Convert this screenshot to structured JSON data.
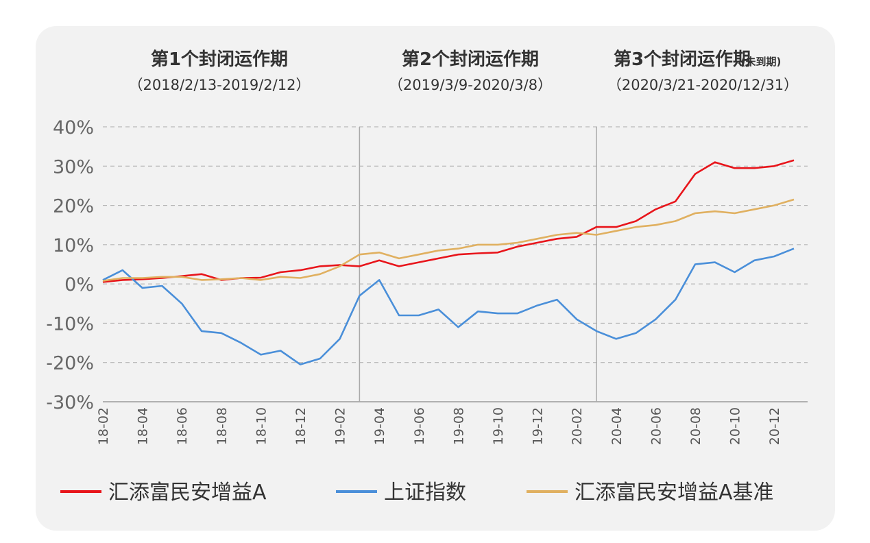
{
  "colors": {
    "fund": "#e8151b",
    "index": "#4a8fd9",
    "benchmark": "#e0b060",
    "grid": "#aaaaaa",
    "background": "#f2f2f2"
  },
  "periods": [
    {
      "title": "第1个封闭运作期",
      "note": "",
      "range": "（2018/2/13-2019/2/12）"
    },
    {
      "title": "第2个封闭运作期",
      "note": "",
      "range": "（2019/3/9-2020/3/8）"
    },
    {
      "title": "第3个封闭运作期",
      "note": "(未到期)",
      "range": "（2020/3/21-2020/12/31）"
    }
  ],
  "chart_data": {
    "type": "line",
    "title": "",
    "xlabel": "",
    "ylabel": "",
    "ylim": [
      -30,
      40
    ],
    "yticks": [
      40,
      30,
      20,
      10,
      0,
      -10,
      -20,
      -30
    ],
    "ytick_labels": [
      "40%",
      "30%",
      "20%",
      "10%",
      "0%",
      "-10%",
      "-20%",
      "-30%"
    ],
    "xtick_labels": [
      "18-02",
      "18-04",
      "18-06",
      "18-08",
      "18-10",
      "18-12",
      "19-02",
      "19-04",
      "19-06",
      "19-08",
      "19-10",
      "19-12",
      "20-02",
      "20-04",
      "20-06",
      "20-08",
      "20-10",
      "20-12"
    ],
    "period_dividers": [
      "2019-03",
      "2020-03"
    ],
    "grid": true,
    "legend_position": "bottom",
    "series": [
      {
        "name": "汇添富民安增益A",
        "color": "#e8151b",
        "points": [
          [
            "18-02",
            0.5
          ],
          [
            "18-03",
            1.0
          ],
          [
            "18-04",
            1.2
          ],
          [
            "18-05",
            1.5
          ],
          [
            "18-06",
            2.0
          ],
          [
            "18-07",
            2.5
          ],
          [
            "18-08",
            1.0
          ],
          [
            "18-09",
            1.5
          ],
          [
            "18-10",
            1.6
          ],
          [
            "18-11",
            3.0
          ],
          [
            "18-12",
            3.5
          ],
          [
            "19-01",
            4.5
          ],
          [
            "19-02",
            4.8
          ],
          [
            "19-03",
            4.5
          ],
          [
            "19-04",
            6.0
          ],
          [
            "19-05",
            4.5
          ],
          [
            "19-06",
            5.5
          ],
          [
            "19-07",
            6.5
          ],
          [
            "19-08",
            7.5
          ],
          [
            "19-09",
            7.8
          ],
          [
            "19-10",
            8.0
          ],
          [
            "19-11",
            9.5
          ],
          [
            "19-12",
            10.5
          ],
          [
            "20-01",
            11.5
          ],
          [
            "20-02",
            12.0
          ],
          [
            "20-03",
            14.5
          ],
          [
            "20-04",
            14.5
          ],
          [
            "20-05",
            16.0
          ],
          [
            "20-06",
            19.0
          ],
          [
            "20-07",
            21.0
          ],
          [
            "20-08",
            28.0
          ],
          [
            "20-09",
            31.0
          ],
          [
            "20-10",
            29.5
          ],
          [
            "20-11",
            29.5
          ],
          [
            "20-12",
            30.0
          ],
          [
            "21-01",
            31.5
          ]
        ]
      },
      {
        "name": "上证指数",
        "color": "#4a8fd9",
        "points": [
          [
            "18-02",
            1.0
          ],
          [
            "18-03",
            3.5
          ],
          [
            "18-04",
            -1.0
          ],
          [
            "18-05",
            -0.5
          ],
          [
            "18-06",
            -5.0
          ],
          [
            "18-07",
            -12.0
          ],
          [
            "18-08",
            -12.5
          ],
          [
            "18-09",
            -15.0
          ],
          [
            "18-10",
            -18.0
          ],
          [
            "18-11",
            -17.0
          ],
          [
            "18-12",
            -20.5
          ],
          [
            "19-01",
            -19.0
          ],
          [
            "19-02",
            -14.0
          ],
          [
            "19-03",
            -3.0
          ],
          [
            "19-04",
            1.0
          ],
          [
            "19-05",
            -8.0
          ],
          [
            "19-06",
            -8.0
          ],
          [
            "19-07",
            -6.5
          ],
          [
            "19-08",
            -11.0
          ],
          [
            "19-09",
            -7.0
          ],
          [
            "19-10",
            -7.5
          ],
          [
            "19-11",
            -7.5
          ],
          [
            "19-12",
            -5.5
          ],
          [
            "20-01",
            -4.0
          ],
          [
            "20-02",
            -9.0
          ],
          [
            "20-03",
            -12.0
          ],
          [
            "20-04",
            -14.0
          ],
          [
            "20-05",
            -12.5
          ],
          [
            "20-06",
            -9.0
          ],
          [
            "20-07",
            -4.0
          ],
          [
            "20-08",
            5.0
          ],
          [
            "20-09",
            5.5
          ],
          [
            "20-10",
            3.0
          ],
          [
            "20-11",
            6.0
          ],
          [
            "20-12",
            7.0
          ],
          [
            "21-01",
            9.0
          ]
        ]
      },
      {
        "name": "汇添富民安增益A基准",
        "color": "#e0b060",
        "points": [
          [
            "18-02",
            0.8
          ],
          [
            "18-03",
            1.5
          ],
          [
            "18-04",
            1.5
          ],
          [
            "18-05",
            1.8
          ],
          [
            "18-06",
            1.8
          ],
          [
            "18-07",
            1.0
          ],
          [
            "18-08",
            1.2
          ],
          [
            "18-09",
            1.5
          ],
          [
            "18-10",
            1.0
          ],
          [
            "18-11",
            1.8
          ],
          [
            "18-12",
            1.5
          ],
          [
            "19-01",
            2.5
          ],
          [
            "19-02",
            4.5
          ],
          [
            "19-03",
            7.5
          ],
          [
            "19-04",
            8.0
          ],
          [
            "19-05",
            6.5
          ],
          [
            "19-06",
            7.5
          ],
          [
            "19-07",
            8.5
          ],
          [
            "19-08",
            9.0
          ],
          [
            "19-09",
            10.0
          ],
          [
            "19-10",
            10.0
          ],
          [
            "19-11",
            10.5
          ],
          [
            "19-12",
            11.5
          ],
          [
            "20-01",
            12.5
          ],
          [
            "20-02",
            13.0
          ],
          [
            "20-03",
            12.5
          ],
          [
            "20-04",
            13.5
          ],
          [
            "20-05",
            14.5
          ],
          [
            "20-06",
            15.0
          ],
          [
            "20-07",
            16.0
          ],
          [
            "20-08",
            18.0
          ],
          [
            "20-09",
            18.5
          ],
          [
            "20-10",
            18.0
          ],
          [
            "20-11",
            19.0
          ],
          [
            "20-12",
            20.0
          ],
          [
            "21-01",
            21.5
          ]
        ]
      }
    ]
  }
}
